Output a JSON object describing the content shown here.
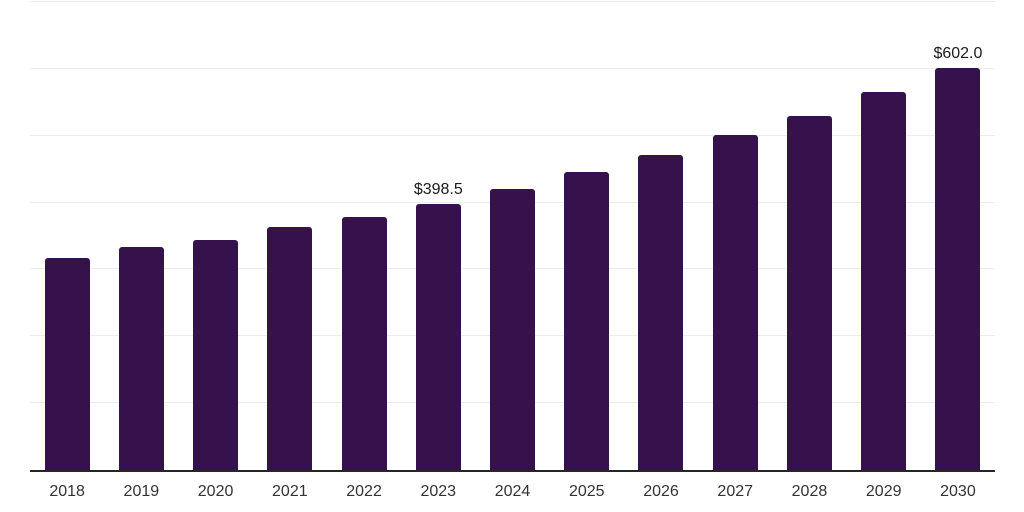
{
  "chart_data": {
    "type": "bar",
    "title": "",
    "xlabel": "",
    "ylabel": "",
    "categories": [
      "2018",
      "2019",
      "2020",
      "2021",
      "2022",
      "2023",
      "2024",
      "2025",
      "2026",
      "2027",
      "2028",
      "2029",
      "2030"
    ],
    "values": [
      317,
      333,
      344,
      363,
      379,
      398.5,
      421,
      446,
      471,
      501,
      530,
      565,
      602
    ],
    "point_labels": [
      "",
      "",
      "",
      "",
      "",
      "$398.5",
      "",
      "",
      "",
      "",
      "",
      "",
      "$602.0"
    ],
    "ylim": [
      0,
      700
    ],
    "gridline_step": 100,
    "grid": "horizontal",
    "legend": "none",
    "y_axis_tick_labels_visible": false
  },
  "colors": {
    "bar": "#36124c",
    "gridline": "#ededed",
    "axis_line": "#262626",
    "tick_label": "#333333",
    "data_label": "#1a1a1a",
    "background": "#ffffff"
  }
}
